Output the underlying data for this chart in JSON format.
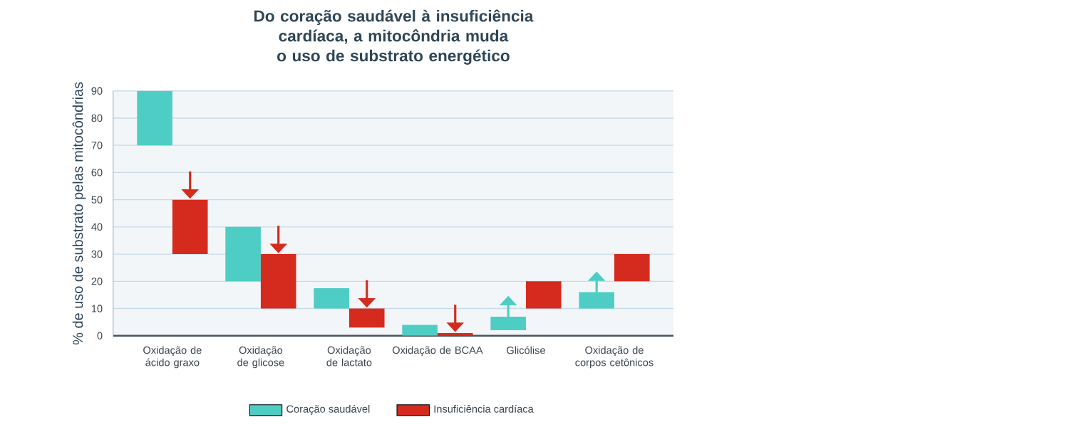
{
  "chart_data": {
    "type": "bar",
    "title": "Do coração saudável à insuficiência cardíaca, a mitocôndria muda o uso de substrato energético",
    "ylabel": "% de uso de substrato pelas mitocôndrias",
    "categories": [
      "Oxidação de ácido graxo",
      "Oxidação de glicose",
      "Oxidação de lactato",
      "Oxidação de BCAA",
      "Glicólise",
      "Oxidação de corpos cetônicos"
    ],
    "series": [
      {
        "name": "Coração saudável",
        "color": "#4ecdc4",
        "base": [
          70,
          20,
          10,
          0,
          2,
          10
        ],
        "values": [
          20,
          20,
          7.5,
          4,
          5,
          6
        ]
      },
      {
        "name": "Insuficiência cardíaca",
        "color": "#d52b1e",
        "base": [
          30,
          10,
          3,
          0,
          10,
          20
        ],
        "values": [
          20,
          20,
          7,
          1,
          10,
          10
        ]
      }
    ],
    "ylim": [
      0,
      90
    ],
    "yticks": [
      0,
      10,
      20,
      30,
      40,
      50,
      60,
      70,
      80,
      90
    ],
    "grid": "y",
    "legend": "bottom"
  }
}
